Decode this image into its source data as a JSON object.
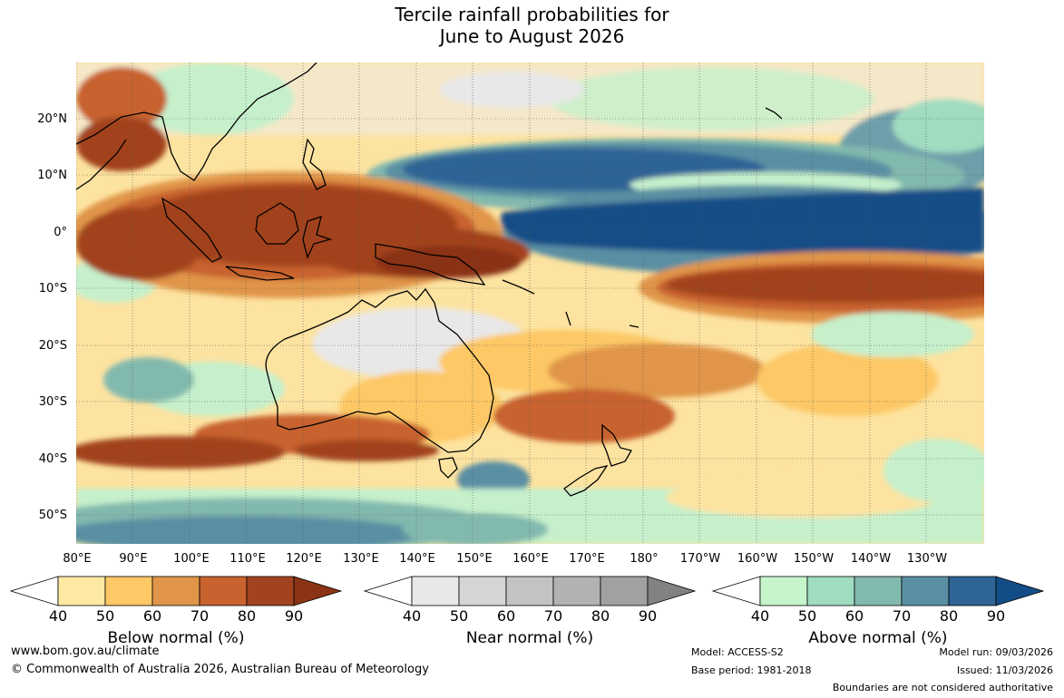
{
  "title_line1": "Tercile rainfall probabilities for",
  "title_line2": "June to August 2026",
  "map": {
    "lat_labels": [
      "20°N",
      "10°N",
      "0°",
      "10°S",
      "20°S",
      "30°S",
      "40°S",
      "50°S"
    ],
    "lon_labels": [
      "80°E",
      "90°E",
      "100°E",
      "110°E",
      "120°E",
      "130°E",
      "140°E",
      "150°E",
      "160°E",
      "170°E",
      "180°",
      "170°W",
      "160°W",
      "150°W",
      "140°W",
      "130°W"
    ]
  },
  "legends": [
    {
      "title": "Below normal (%)",
      "ticks": [
        "40",
        "50",
        "60",
        "70",
        "80",
        "90"
      ],
      "colors": [
        "#ffffff",
        "#fde9a1",
        "#fdc865",
        "#e09549",
        "#c8622f",
        "#a2431f",
        "#8a3315"
      ]
    },
    {
      "title": "Near normal (%)",
      "ticks": [
        "40",
        "50",
        "60",
        "70",
        "80",
        "90"
      ],
      "colors": [
        "#ffffff",
        "#e8e8e8",
        "#d5d5d5",
        "#c3c3c3",
        "#b2b2b2",
        "#a1a1a1",
        "#828282"
      ]
    },
    {
      "title": "Above normal (%)",
      "ticks": [
        "40",
        "50",
        "60",
        "70",
        "80",
        "90"
      ],
      "colors": [
        "#ffffff",
        "#c6f5cc",
        "#a0dcc0",
        "#82b9ae",
        "#5a8fa3",
        "#2f6496",
        "#134d87"
      ]
    }
  ],
  "footer": {
    "url": "www.bom.gov.au/climate",
    "copyright": "© Commonwealth of Australia 2026, Australian Bureau of Meteorology",
    "model": "Model: ACCESS-S2",
    "base_period": "Base period: 1981-2018",
    "model_run": "Model run: 09/03/2026",
    "issued": "Issued: 11/03/2026",
    "disclaimer": "Boundaries are not considered authoritative"
  }
}
